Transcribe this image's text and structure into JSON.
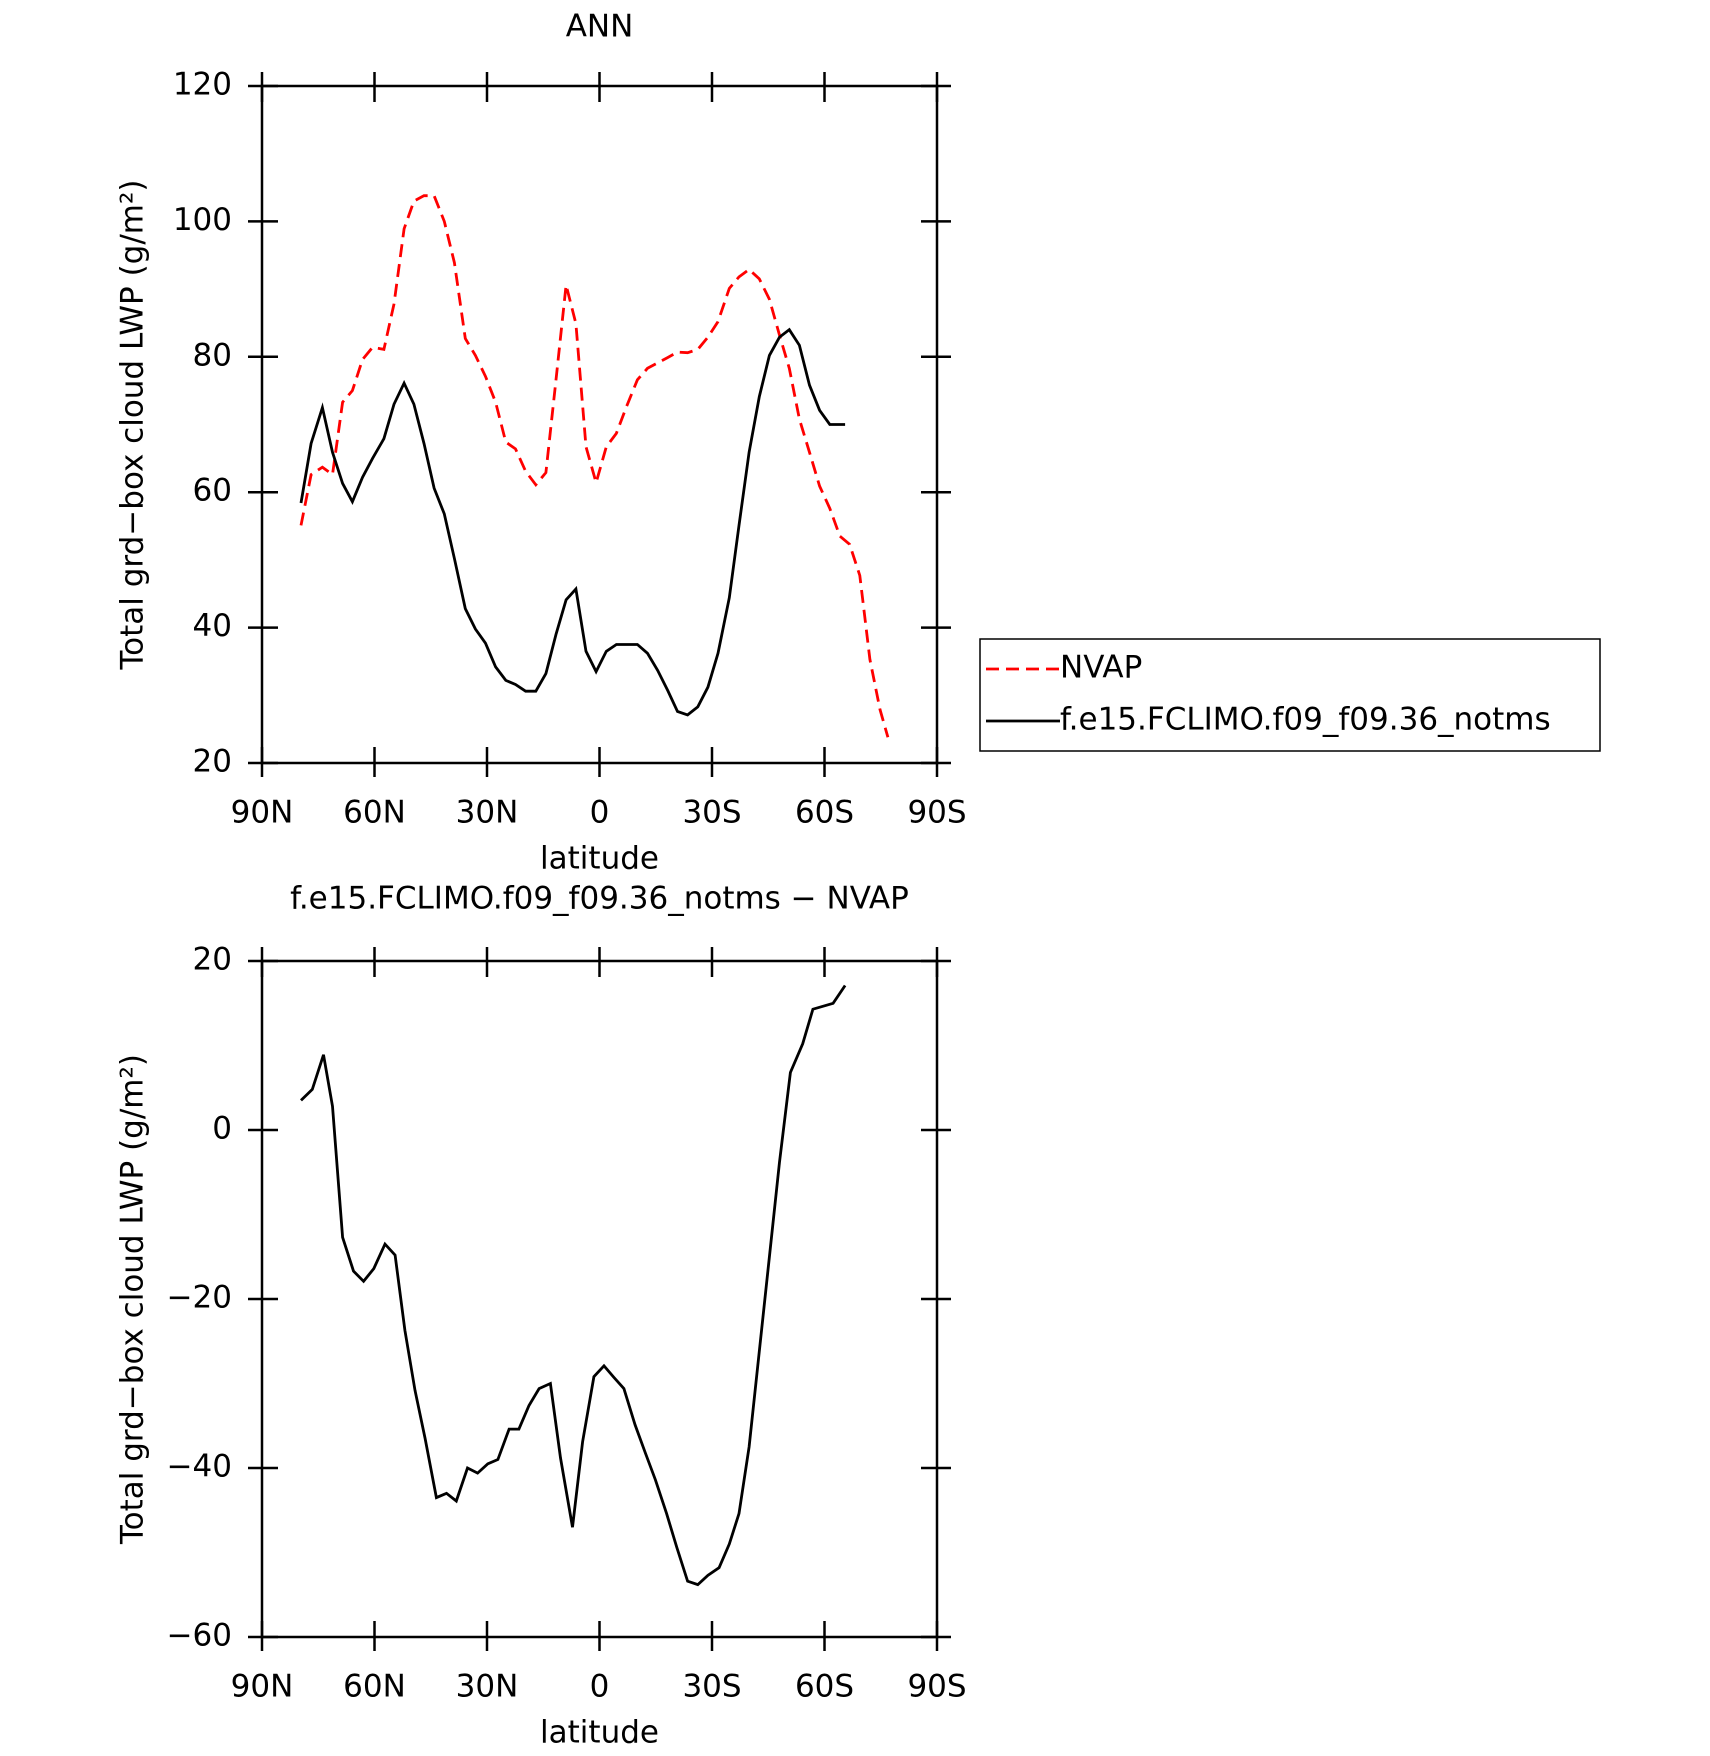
{
  "chart_data": [
    {
      "type": "line",
      "title": "ANN",
      "x_label": "latitude",
      "y_label": "Total grd−box cloud LWP (g/m²)",
      "xlim": [
        90,
        -90
      ],
      "xticks": [
        {
          "value": 90,
          "label": "90N"
        },
        {
          "value": 60,
          "label": "60N"
        },
        {
          "value": 30,
          "label": "30N"
        },
        0,
        {
          "value": -30,
          "label": "30S"
        },
        {
          "value": -60,
          "label": "60S"
        },
        {
          "value": -90,
          "label": "90S"
        }
      ],
      "ylim": [
        20,
        120
      ],
      "yticks": [
        20,
        40,
        60,
        80,
        100,
        120
      ],
      "legend": "right",
      "series": [
        {
          "name": "NVAP",
          "color": "#ff0000",
          "style": "dashed",
          "x": [
            79.6,
            76.9,
            73.9,
            71.2,
            68.5,
            65.9,
            63.2,
            60.5,
            57.5,
            54.8,
            52.1,
            49.5,
            46.8,
            44.1,
            41.4,
            38.7,
            35.8,
            33.1,
            30.4,
            27.7,
            25.0,
            22.4,
            19.7,
            17.0,
            14.3,
            11.6,
            8.9,
            6.3,
            3.6,
            0.9,
            -1.8,
            -4.5,
            -7.1,
            -10.1,
            -12.8,
            -15.5,
            -18.2,
            -20.8,
            -23.5,
            -26.2,
            -28.9,
            -31.6,
            -34.6,
            -37.2,
            -39.9,
            -42.6,
            -45.3,
            -48.0,
            -50.6,
            -53.3,
            -56.0,
            -58.7,
            -61.4,
            -64.1,
            -66.7,
            -69.4,
            -72.1,
            -74.8,
            -76.9
          ],
          "values": [
            55.1,
            62.6,
            63.7,
            62.6,
            73.3,
            75.0,
            79.6,
            81.4,
            81.1,
            87.8,
            98.9,
            103.0,
            103.8,
            103.8,
            100.0,
            93.9,
            82.7,
            80.2,
            77.1,
            73.3,
            67.4,
            66.4,
            63.1,
            61.1,
            62.9,
            76.6,
            90.6,
            84.9,
            66.7,
            61.4,
            66.7,
            68.7,
            72.5,
            76.6,
            78.3,
            79.1,
            79.9,
            80.7,
            80.6,
            81.1,
            82.9,
            85.2,
            90.1,
            91.8,
            92.9,
            91.5,
            88.5,
            83.2,
            78.3,
            70.8,
            65.9,
            60.9,
            57.6,
            53.5,
            52.3,
            47.7,
            35.3,
            27.9,
            23.8
          ]
        },
        {
          "name": "f.e15.FCLIMO.f09_f09.36_notms",
          "color": "#000000",
          "style": "solid",
          "x": [
            79.6,
            76.9,
            73.9,
            71.2,
            68.5,
            65.9,
            63.2,
            60.5,
            57.5,
            54.8,
            52.1,
            49.5,
            46.8,
            44.1,
            41.4,
            38.7,
            35.8,
            33.1,
            30.4,
            27.7,
            25.0,
            22.4,
            19.7,
            17.0,
            14.3,
            11.6,
            8.9,
            6.3,
            3.6,
            0.9,
            -1.8,
            -4.5,
            -7.1,
            -10.1,
            -12.8,
            -15.5,
            -18.2,
            -20.8,
            -23.5,
            -26.2,
            -28.9,
            -31.6,
            -34.6,
            -37.2,
            -39.9,
            -42.6,
            -45.3,
            -48.0,
            -50.6,
            -53.3,
            -56.0,
            -58.7,
            -61.4,
            -65.5
          ],
          "values": [
            58.4,
            67.2,
            72.5,
            65.9,
            61.3,
            58.6,
            62.2,
            65.0,
            67.9,
            73.0,
            76.1,
            73.0,
            67.2,
            60.6,
            56.8,
            50.2,
            42.8,
            39.8,
            37.7,
            34.2,
            32.2,
            31.6,
            30.6,
            30.6,
            33.2,
            39.0,
            44.1,
            45.7,
            36.5,
            33.5,
            36.5,
            37.5,
            37.5,
            37.5,
            36.2,
            33.7,
            30.7,
            27.6,
            27.1,
            28.3,
            31.2,
            36.2,
            44.4,
            55.1,
            65.9,
            74.1,
            80.2,
            82.9,
            84.0,
            81.7,
            75.8,
            72.1,
            70.0,
            70.0
          ]
        }
      ]
    },
    {
      "type": "line",
      "title": "f.e15.FCLIMO.f09_f09.36_notms − NVAP",
      "x_label": "latitude",
      "y_label": "Total grd−box cloud LWP (g/m²)",
      "xlim": [
        90,
        -90
      ],
      "xticks": [
        {
          "value": 90,
          "label": "90N"
        },
        {
          "value": 60,
          "label": "60N"
        },
        {
          "value": 30,
          "label": "30N"
        },
        0,
        {
          "value": -30,
          "label": "30S"
        },
        {
          "value": -60,
          "label": "60S"
        },
        {
          "value": -90,
          "label": "90S"
        }
      ],
      "ylim": [
        -60,
        20
      ],
      "yticks": [
        {
          "value": -60,
          "label": "−60"
        },
        {
          "value": -40,
          "label": "−40"
        },
        {
          "value": -20,
          "label": "−20"
        },
        0,
        20
      ],
      "series": [
        {
          "color": "#000000",
          "style": "solid",
          "x": [
            79.6,
            76.6,
            73.6,
            71.2,
            68.5,
            65.6,
            62.9,
            60.2,
            57.2,
            54.5,
            51.9,
            49.2,
            46.5,
            43.5,
            40.8,
            38.2,
            35.2,
            32.5,
            29.8,
            27.1,
            24.1,
            21.5,
            18.8,
            16.1,
            13.1,
            10.4,
            7.2,
            4.5,
            1.5,
            -1.2,
            -3.9,
            -6.5,
            -9.5,
            -12.2,
            -14.9,
            -17.9,
            -20.6,
            -23.5,
            -26.2,
            -28.9,
            -31.9,
            -34.6,
            -37.2,
            -39.9,
            -42.6,
            -45.3,
            -48.0,
            -50.9,
            -54.2,
            -56.9,
            -62.3,
            -65.5
          ],
          "values": [
            3.5,
            4.8,
            8.9,
            2.8,
            -12.7,
            -16.7,
            -17.9,
            -16.4,
            -13.5,
            -14.8,
            -23.7,
            -30.8,
            -36.5,
            -43.5,
            -43.0,
            -43.9,
            -40.0,
            -40.6,
            -39.5,
            -39.0,
            -35.4,
            -35.4,
            -32.6,
            -30.6,
            -30.0,
            -38.8,
            -47.0,
            -36.9,
            -29.2,
            -27.9,
            -29.3,
            -30.6,
            -34.9,
            -38.2,
            -41.4,
            -45.4,
            -49.4,
            -53.4,
            -53.8,
            -52.7,
            -51.8,
            -49.0,
            -45.4,
            -37.5,
            -26.2,
            -15.0,
            -3.8,
            6.8,
            10.2,
            14.3,
            15.0,
            17.1
          ]
        }
      ]
    }
  ]
}
